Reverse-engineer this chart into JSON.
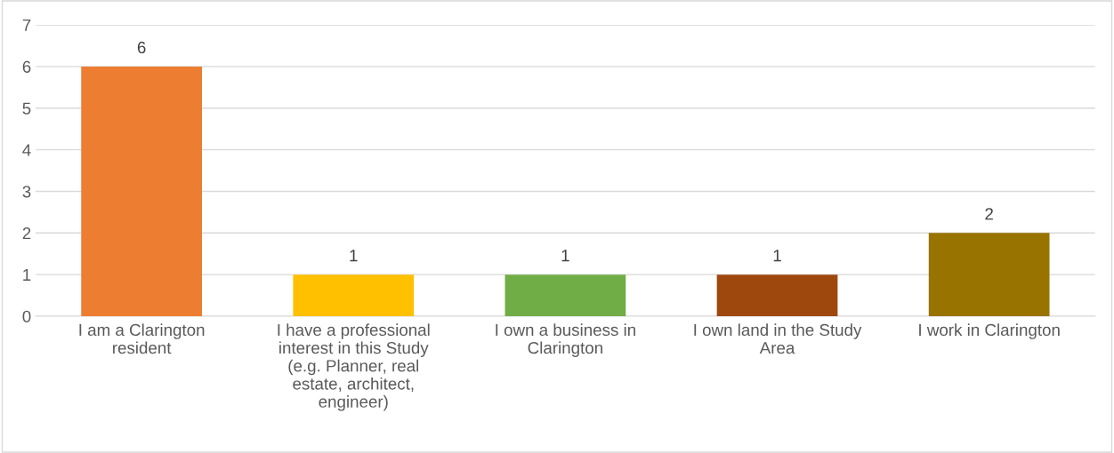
{
  "chart_data": {
    "type": "bar",
    "categories": [
      "I am a Clarington resident",
      "I have a professional interest in this Study (e.g. Planner, real estate, architect, engineer)",
      "I own a business in Clarington",
      "I own land in the Study Area",
      "I work in Clarington"
    ],
    "values": [
      6,
      1,
      1,
      1,
      2
    ],
    "colors": [
      "#ed7d31",
      "#ffc000",
      "#70ad47",
      "#9e480e",
      "#997300"
    ],
    "ylim": [
      0,
      7
    ],
    "yticks": [
      0,
      1,
      2,
      3,
      4,
      5,
      6,
      7
    ],
    "grid": "y",
    "data_labels": true
  }
}
